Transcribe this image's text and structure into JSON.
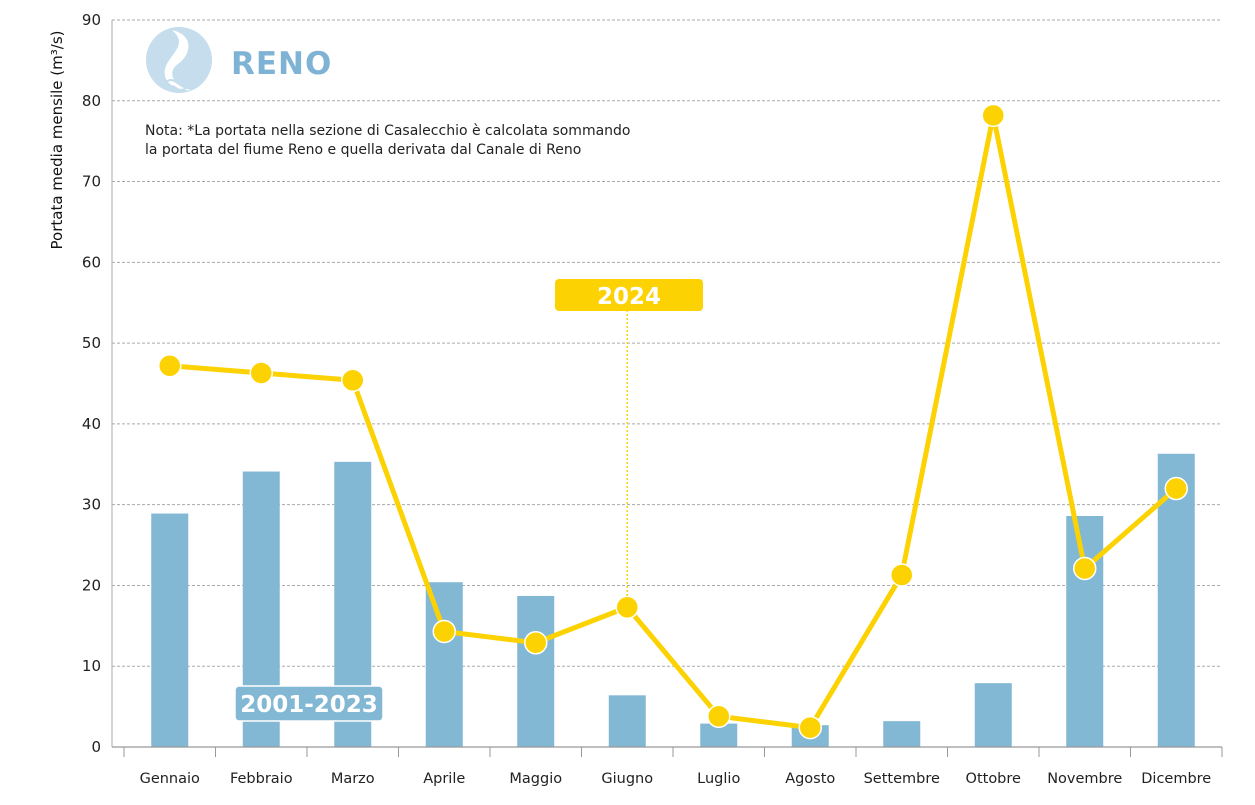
{
  "chart_data": {
    "type": "bar+line",
    "title": "RENO",
    "note_lines": [
      "Nota: *La portata nella sezione di Casalecchio è calcolata sommando",
      "la portata del fiume Reno e quella derivata dal Canale di Reno"
    ],
    "ylabel": "Portata media mensile (m³/s)",
    "ylim": [
      0,
      90
    ],
    "yticks": [
      0,
      10,
      20,
      30,
      40,
      50,
      60,
      70,
      80,
      90
    ],
    "categories": [
      "Gennaio",
      "Febbraio",
      "Marzo",
      "Aprile",
      "Maggio",
      "Giugno",
      "Luglio",
      "Agosto",
      "Settembre",
      "Ottobre",
      "Novembre",
      "Dicembre"
    ],
    "series": [
      {
        "name": "2001-2023",
        "type": "bar",
        "color": "#82b8d4",
        "values": [
          28.9,
          34.1,
          35.3,
          20.4,
          18.7,
          6.4,
          2.9,
          2.7,
          3.2,
          7.9,
          28.6,
          36.3
        ]
      },
      {
        "name": "2024",
        "type": "line",
        "color": "#fcd203",
        "values": [
          47.2,
          46.3,
          45.4,
          14.3,
          12.9,
          17.3,
          3.8,
          2.4,
          21.3,
          78.2,
          22.1,
          32.0
        ]
      }
    ],
    "grid": true,
    "legend": "inline labels on series"
  }
}
